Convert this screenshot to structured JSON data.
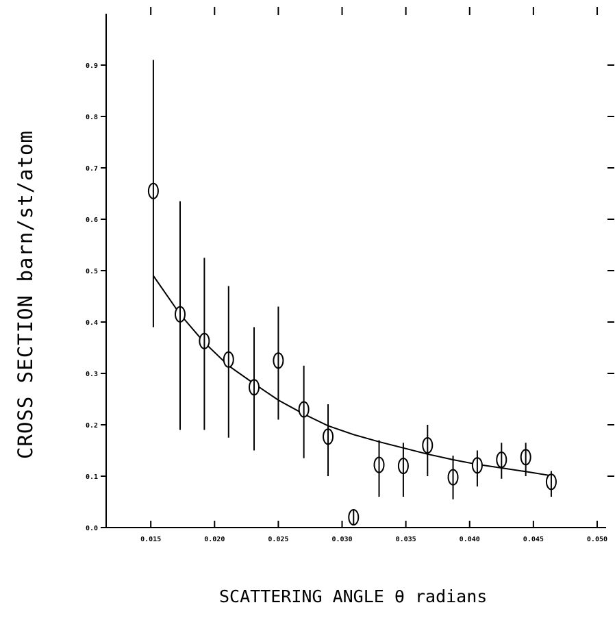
{
  "chart_data": {
    "type": "scatter",
    "title": "",
    "xlabel": "SCATTERING ANGLE θ radians",
    "ylabel": "CROSS SECTION barn/st/atom",
    "xlim": [
      0.0115,
      0.0507
    ],
    "ylim": [
      0.0,
      1.0
    ],
    "xticks": [
      "0.015",
      "0.020",
      "0.025",
      "0.030",
      "0.035",
      "0.040",
      "0.045",
      "0.050"
    ],
    "xtick_values": [
      0.015,
      0.02,
      0.025,
      0.03,
      0.035,
      0.04,
      0.045,
      0.05
    ],
    "yticks": [
      "0.0",
      "0.1",
      "0.2",
      "0.3",
      "0.4",
      "0.5",
      "0.6",
      "0.7",
      "0.8",
      "0.9"
    ],
    "ytick_values": [
      0.0,
      0.1,
      0.2,
      0.3,
      0.4,
      0.5,
      0.6,
      0.7,
      0.8,
      0.9
    ],
    "grid": false,
    "series": [
      {
        "kind": "points_with_error_bars",
        "x": [
          0.0152,
          0.0173,
          0.0192,
          0.0211,
          0.0231,
          0.025,
          0.027,
          0.0289,
          0.0309,
          0.0329,
          0.0348,
          0.0367,
          0.0387,
          0.0406,
          0.0425,
          0.0444,
          0.0464
        ],
        "y": [
          0.655,
          0.415,
          0.363,
          0.327,
          0.273,
          0.325,
          0.23,
          0.177,
          0.02,
          0.122,
          0.12,
          0.16,
          0.098,
          0.121,
          0.132,
          0.137,
          0.089
        ],
        "y_low": [
          0.39,
          0.19,
          0.19,
          0.175,
          0.15,
          0.21,
          0.135,
          0.1,
          null,
          0.06,
          0.06,
          0.1,
          0.055,
          0.08,
          0.095,
          0.1,
          0.06
        ],
        "y_high": [
          0.91,
          0.635,
          0.525,
          0.47,
          0.39,
          0.43,
          0.315,
          0.24,
          null,
          0.17,
          0.165,
          0.2,
          0.14,
          0.15,
          0.165,
          0.165,
          0.11
        ]
      },
      {
        "kind": "fit_curve",
        "x": [
          0.0152,
          0.0173,
          0.0192,
          0.0211,
          0.0231,
          0.025,
          0.027,
          0.0289,
          0.0309,
          0.0329,
          0.0348,
          0.0367,
          0.0387,
          0.0406,
          0.0425,
          0.0444,
          0.0464
        ],
        "y": [
          0.49,
          0.415,
          0.36,
          0.315,
          0.28,
          0.248,
          0.221,
          0.198,
          0.181,
          0.167,
          0.155,
          0.143,
          0.132,
          0.123,
          0.116,
          0.109,
          0.101
        ]
      }
    ]
  }
}
